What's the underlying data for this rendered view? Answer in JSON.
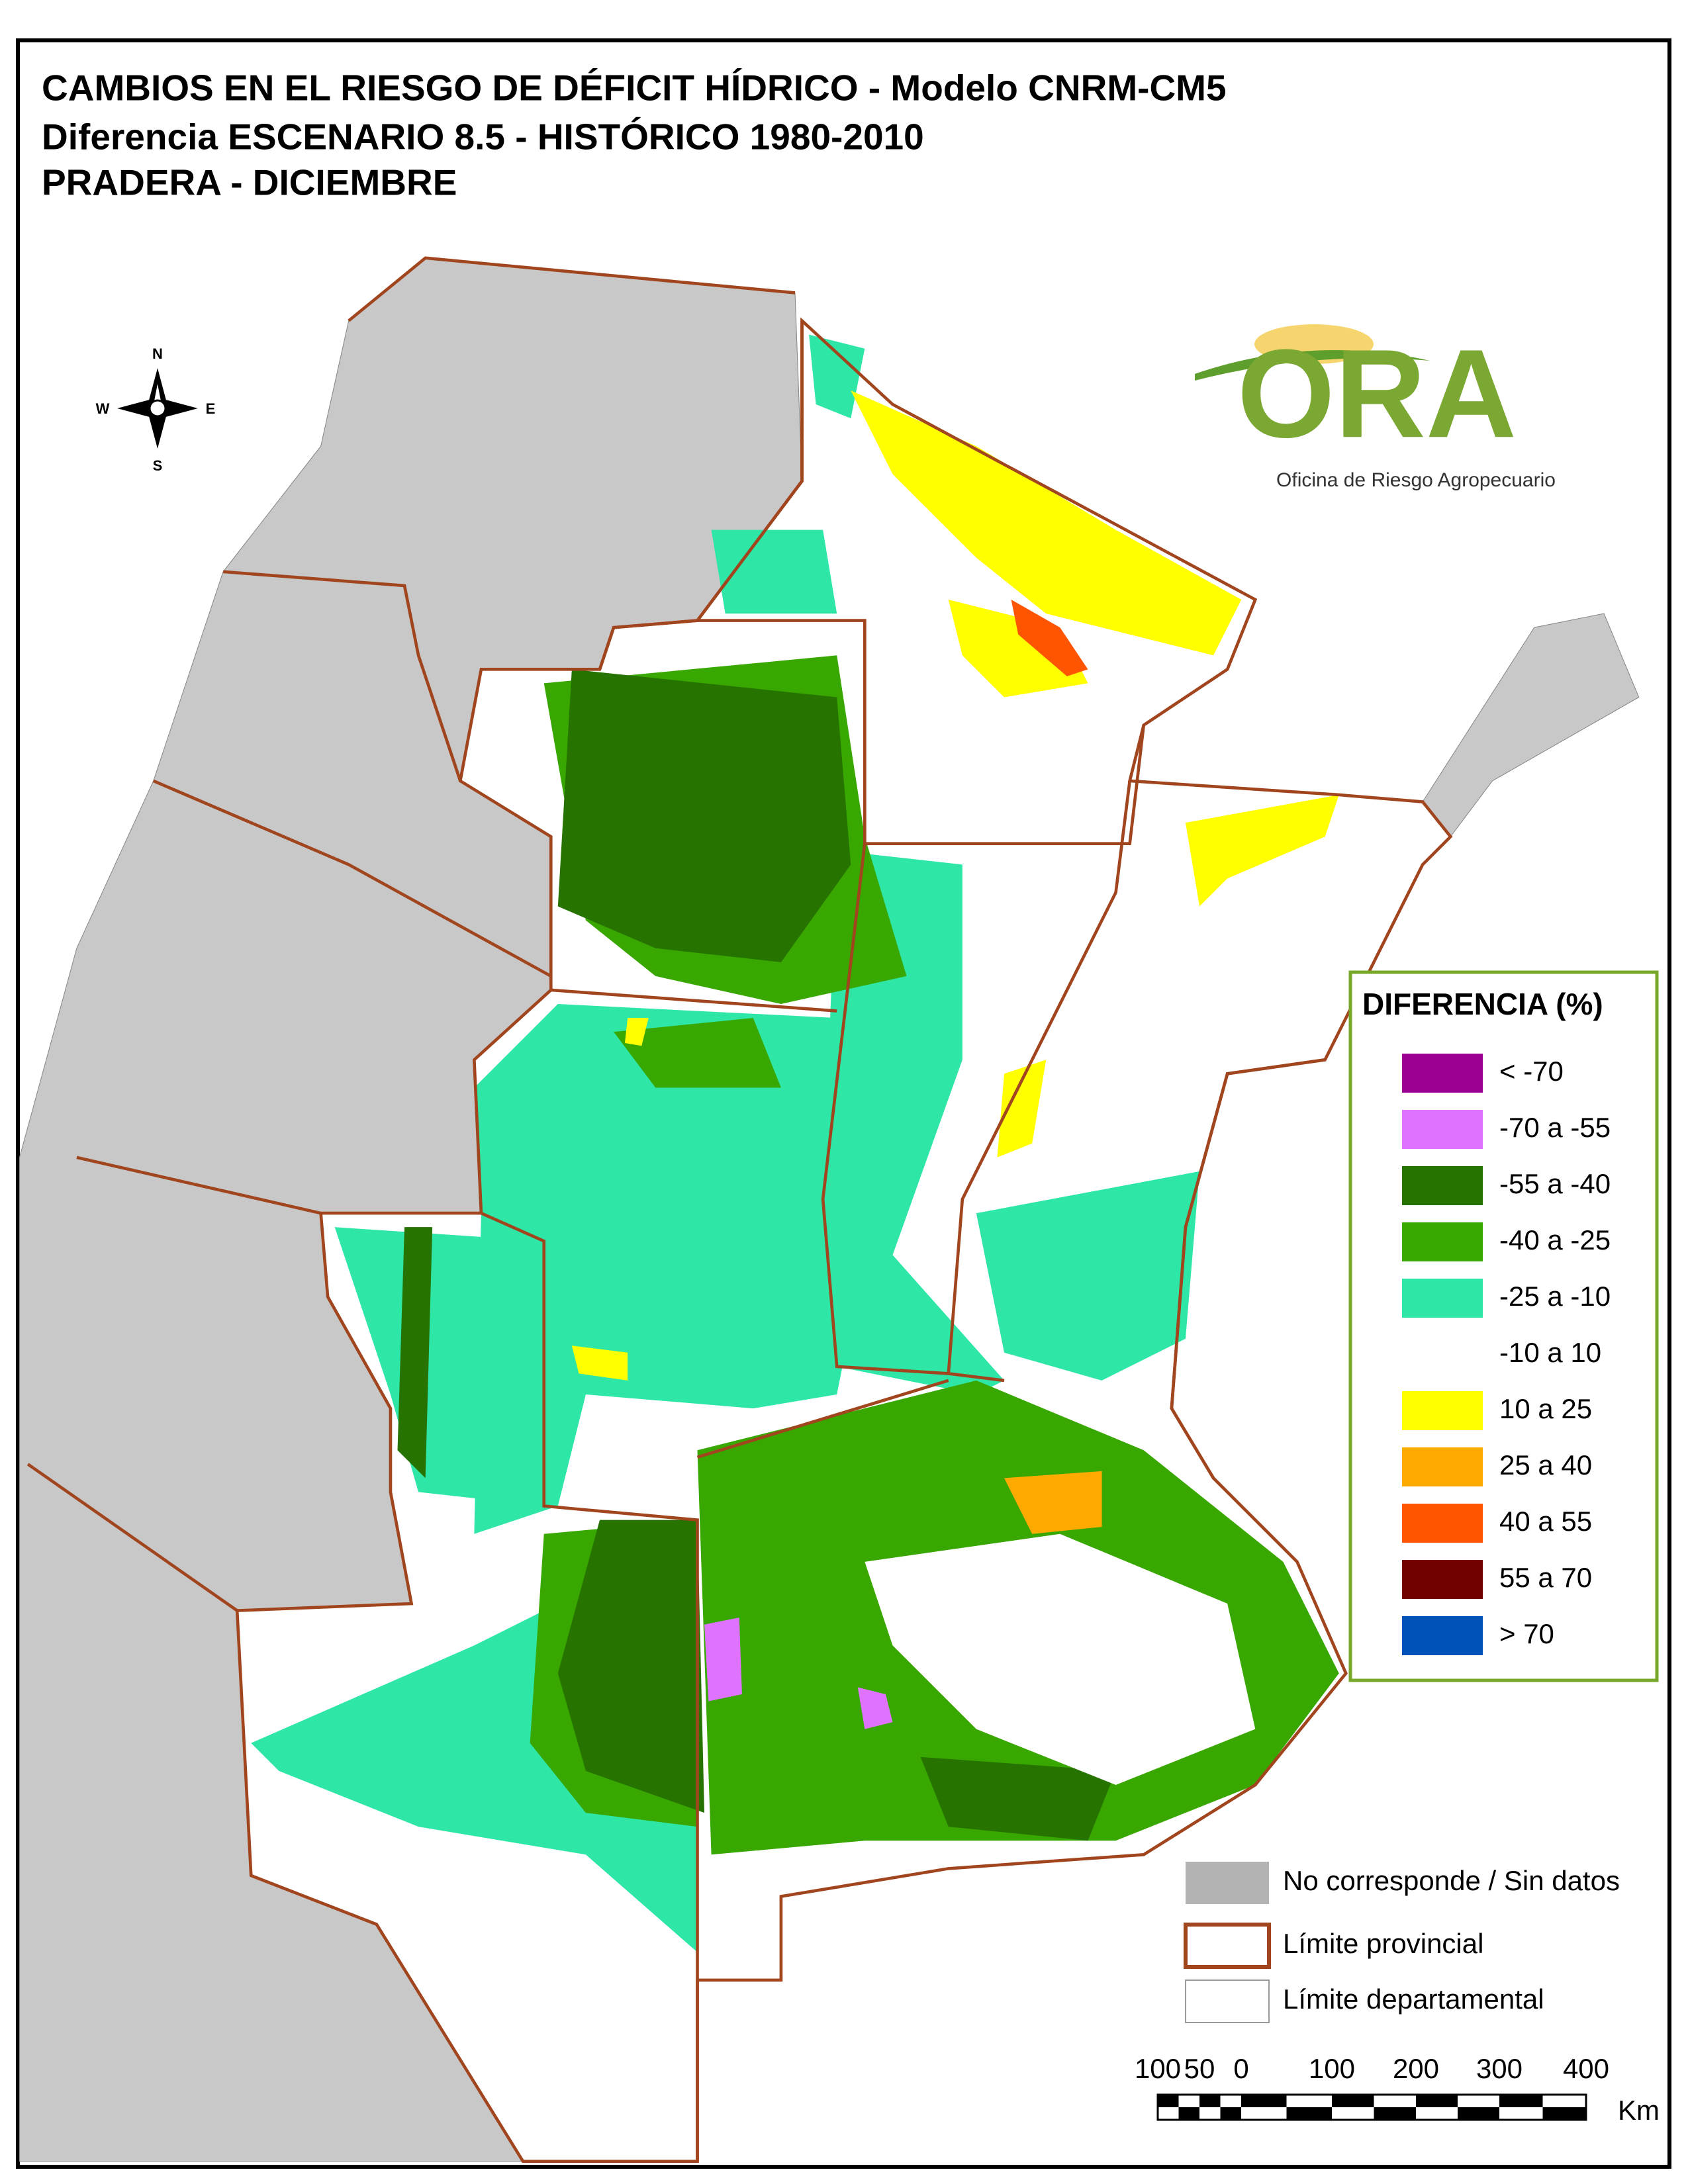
{
  "header": {
    "title_lines": [
      "CAMBIOS EN EL RIESGO DE DÉFICIT HÍDRICO - Modelo CNRM-CM5",
      "Diferencia ESCENARIO 8.5 - HISTÓRICO 1980-2010",
      "PRADERA - DICIEMBRE"
    ]
  },
  "compass": {
    "n": "N",
    "s": "S",
    "e": "E",
    "w": "W"
  },
  "logo": {
    "text": "ORA",
    "subtitle": "Oficina de Riesgo Agropecuario"
  },
  "legend": {
    "title": "DIFERENCIA (%)",
    "items": [
      {
        "label": "< -70",
        "color": "#9b0092"
      },
      {
        "label": "-70 a -55",
        "color": "#df73ff"
      },
      {
        "label": "-55 a -40",
        "color": "#267300"
      },
      {
        "label": "-40 a -25",
        "color": "#38a800"
      },
      {
        "label": "-25 a -10",
        "color": "#2ee6a6"
      },
      {
        "label": "-10 a 10",
        "color": "#ffffff"
      },
      {
        "label": "10 a 25",
        "color": "#ffff00"
      },
      {
        "label": "25 a 40",
        "color": "#ffaa00"
      },
      {
        "label": "40 a 55",
        "color": "#ff5500"
      },
      {
        "label": "55 a 70",
        "color": "#730000"
      },
      {
        "label": "> 70",
        "color": "#0052b8"
      }
    ]
  },
  "reference_legend": {
    "items": [
      {
        "label": "No corresponde / Sin datos",
        "color": "#b3b3b3"
      },
      {
        "label": "Límite provincial",
        "color": "#a0451e"
      },
      {
        "label": "Límite departamental",
        "color": "#999999"
      }
    ]
  },
  "scale_bar": {
    "labels": [
      "100",
      "50",
      "0",
      "100",
      "200",
      "300",
      "400"
    ],
    "unit": "Km"
  }
}
